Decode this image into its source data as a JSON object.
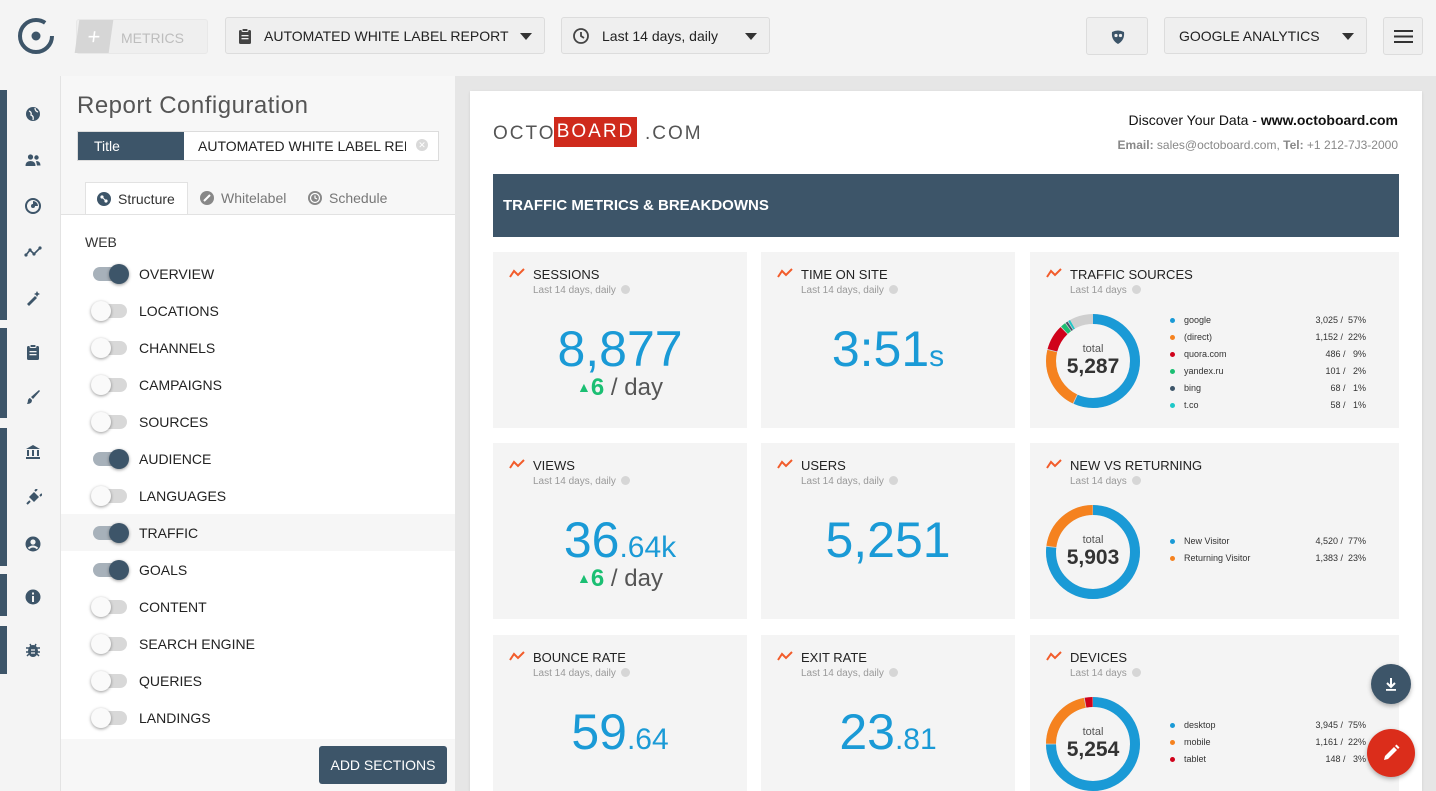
{
  "topbar": {
    "metrics_label": "METRICS",
    "report_select": "AUTOMATED WHITE LABEL REPORT",
    "date_select": "Last 14 days, daily",
    "source_select": "GOOGLE ANALYTICS"
  },
  "panel": {
    "title": "Report Configuration",
    "title_tag": "Title",
    "title_value": "AUTOMATED WHITE LABEL REPORT",
    "tabs": [
      "Structure",
      "Whitelabel",
      "Schedule"
    ],
    "section_head": "WEB",
    "items": [
      {
        "label": "OVERVIEW",
        "on": true
      },
      {
        "label": "LOCATIONS",
        "on": false
      },
      {
        "label": "CHANNELS",
        "on": false
      },
      {
        "label": "CAMPAIGNS",
        "on": false
      },
      {
        "label": "SOURCES",
        "on": false
      },
      {
        "label": "AUDIENCE",
        "on": true
      },
      {
        "label": "LANGUAGES",
        "on": false
      },
      {
        "label": "TRAFFIC",
        "on": true
      },
      {
        "label": "GOALS",
        "on": true
      },
      {
        "label": "CONTENT",
        "on": false
      },
      {
        "label": "SEARCH ENGINE",
        "on": false
      },
      {
        "label": "QUERIES",
        "on": false
      },
      {
        "label": "LANDINGS",
        "on": false
      }
    ],
    "add_sections": "ADD SECTIONS"
  },
  "report": {
    "brand": {
      "p1": "OCTO",
      "p2": "BOARD",
      "p3": ".COM"
    },
    "contact_line1_prefix": "Discover Your Data - ",
    "contact_line1_site": "www.octoboard.com",
    "contact_email_label": "Email:",
    "contact_email": " sales@octoboard.com, ",
    "contact_tel_label": "Tel:",
    "contact_tel": " +1 212-7J3-2000",
    "banner": "TRAFFIC METRICS & BREAKDOWNS",
    "cards": {
      "sessions": {
        "title": "SESSIONS",
        "sub": "Last 14 days, daily",
        "value": "8,877",
        "delta": "6",
        "per": " / day"
      },
      "time": {
        "title": "TIME ON SITE",
        "sub": "Last 14 days, daily",
        "value": "3:51",
        "unit": "s"
      },
      "sources": {
        "title": "TRAFFIC SOURCES",
        "sub": "Last 14 days",
        "total_label": "total",
        "total": "5,287",
        "rows": [
          {
            "name": "google",
            "value": "3,025 /  57%",
            "color": "#1a9ad6",
            "pct": 57
          },
          {
            "name": "(direct)",
            "value": "1,152 /  22%",
            "color": "#f5821f",
            "pct": 22
          },
          {
            "name": "quora.com",
            "value": "486 /   9%",
            "color": "#d0021b",
            "pct": 9
          },
          {
            "name": "yandex.ru",
            "value": "101 /   2%",
            "color": "#1bbf73",
            "pct": 2
          },
          {
            "name": "bing",
            "value": "68 /   1%",
            "color": "#3d5569",
            "pct": 1
          },
          {
            "name": "t.co",
            "value": "58 /   1%",
            "color": "#1ec8c8",
            "pct": 1
          }
        ]
      },
      "views": {
        "title": "VIEWS",
        "sub": "Last 14 days, daily",
        "value_int": "36",
        "value_dec": ".64k",
        "delta": "6",
        "per": " / day"
      },
      "users": {
        "title": "USERS",
        "sub": "Last 14 days, daily",
        "value": "5,251"
      },
      "newret": {
        "title": "NEW VS RETURNING",
        "sub": "Last 14 days",
        "total_label": "total",
        "total": "5,903",
        "rows": [
          {
            "name": "New Visitor",
            "value": "4,520 /  77%",
            "color": "#1a9ad6",
            "pct": 77
          },
          {
            "name": "Returning Visitor",
            "value": "1,383 /  23%",
            "color": "#f5821f",
            "pct": 23
          }
        ]
      },
      "bounce": {
        "title": "BOUNCE RATE",
        "sub": "Last 14 days, daily",
        "value_int": "59",
        "value_dec": ".64"
      },
      "exit": {
        "title": "EXIT RATE",
        "sub": "Last 14 days, daily",
        "value_int": "23",
        "value_dec": ".81"
      },
      "devices": {
        "title": "DEVICES",
        "sub": "Last 14 days",
        "total_label": "total",
        "total": "5,254",
        "rows": [
          {
            "name": "desktop",
            "value": "3,945 /  75%",
            "color": "#1a9ad6",
            "pct": 75
          },
          {
            "name": "mobile",
            "value": "1,161 /  22%",
            "color": "#f5821f",
            "pct": 22
          },
          {
            "name": "tablet",
            "value": "148 /   3%",
            "color": "#d0021b",
            "pct": 3
          }
        ]
      }
    }
  }
}
